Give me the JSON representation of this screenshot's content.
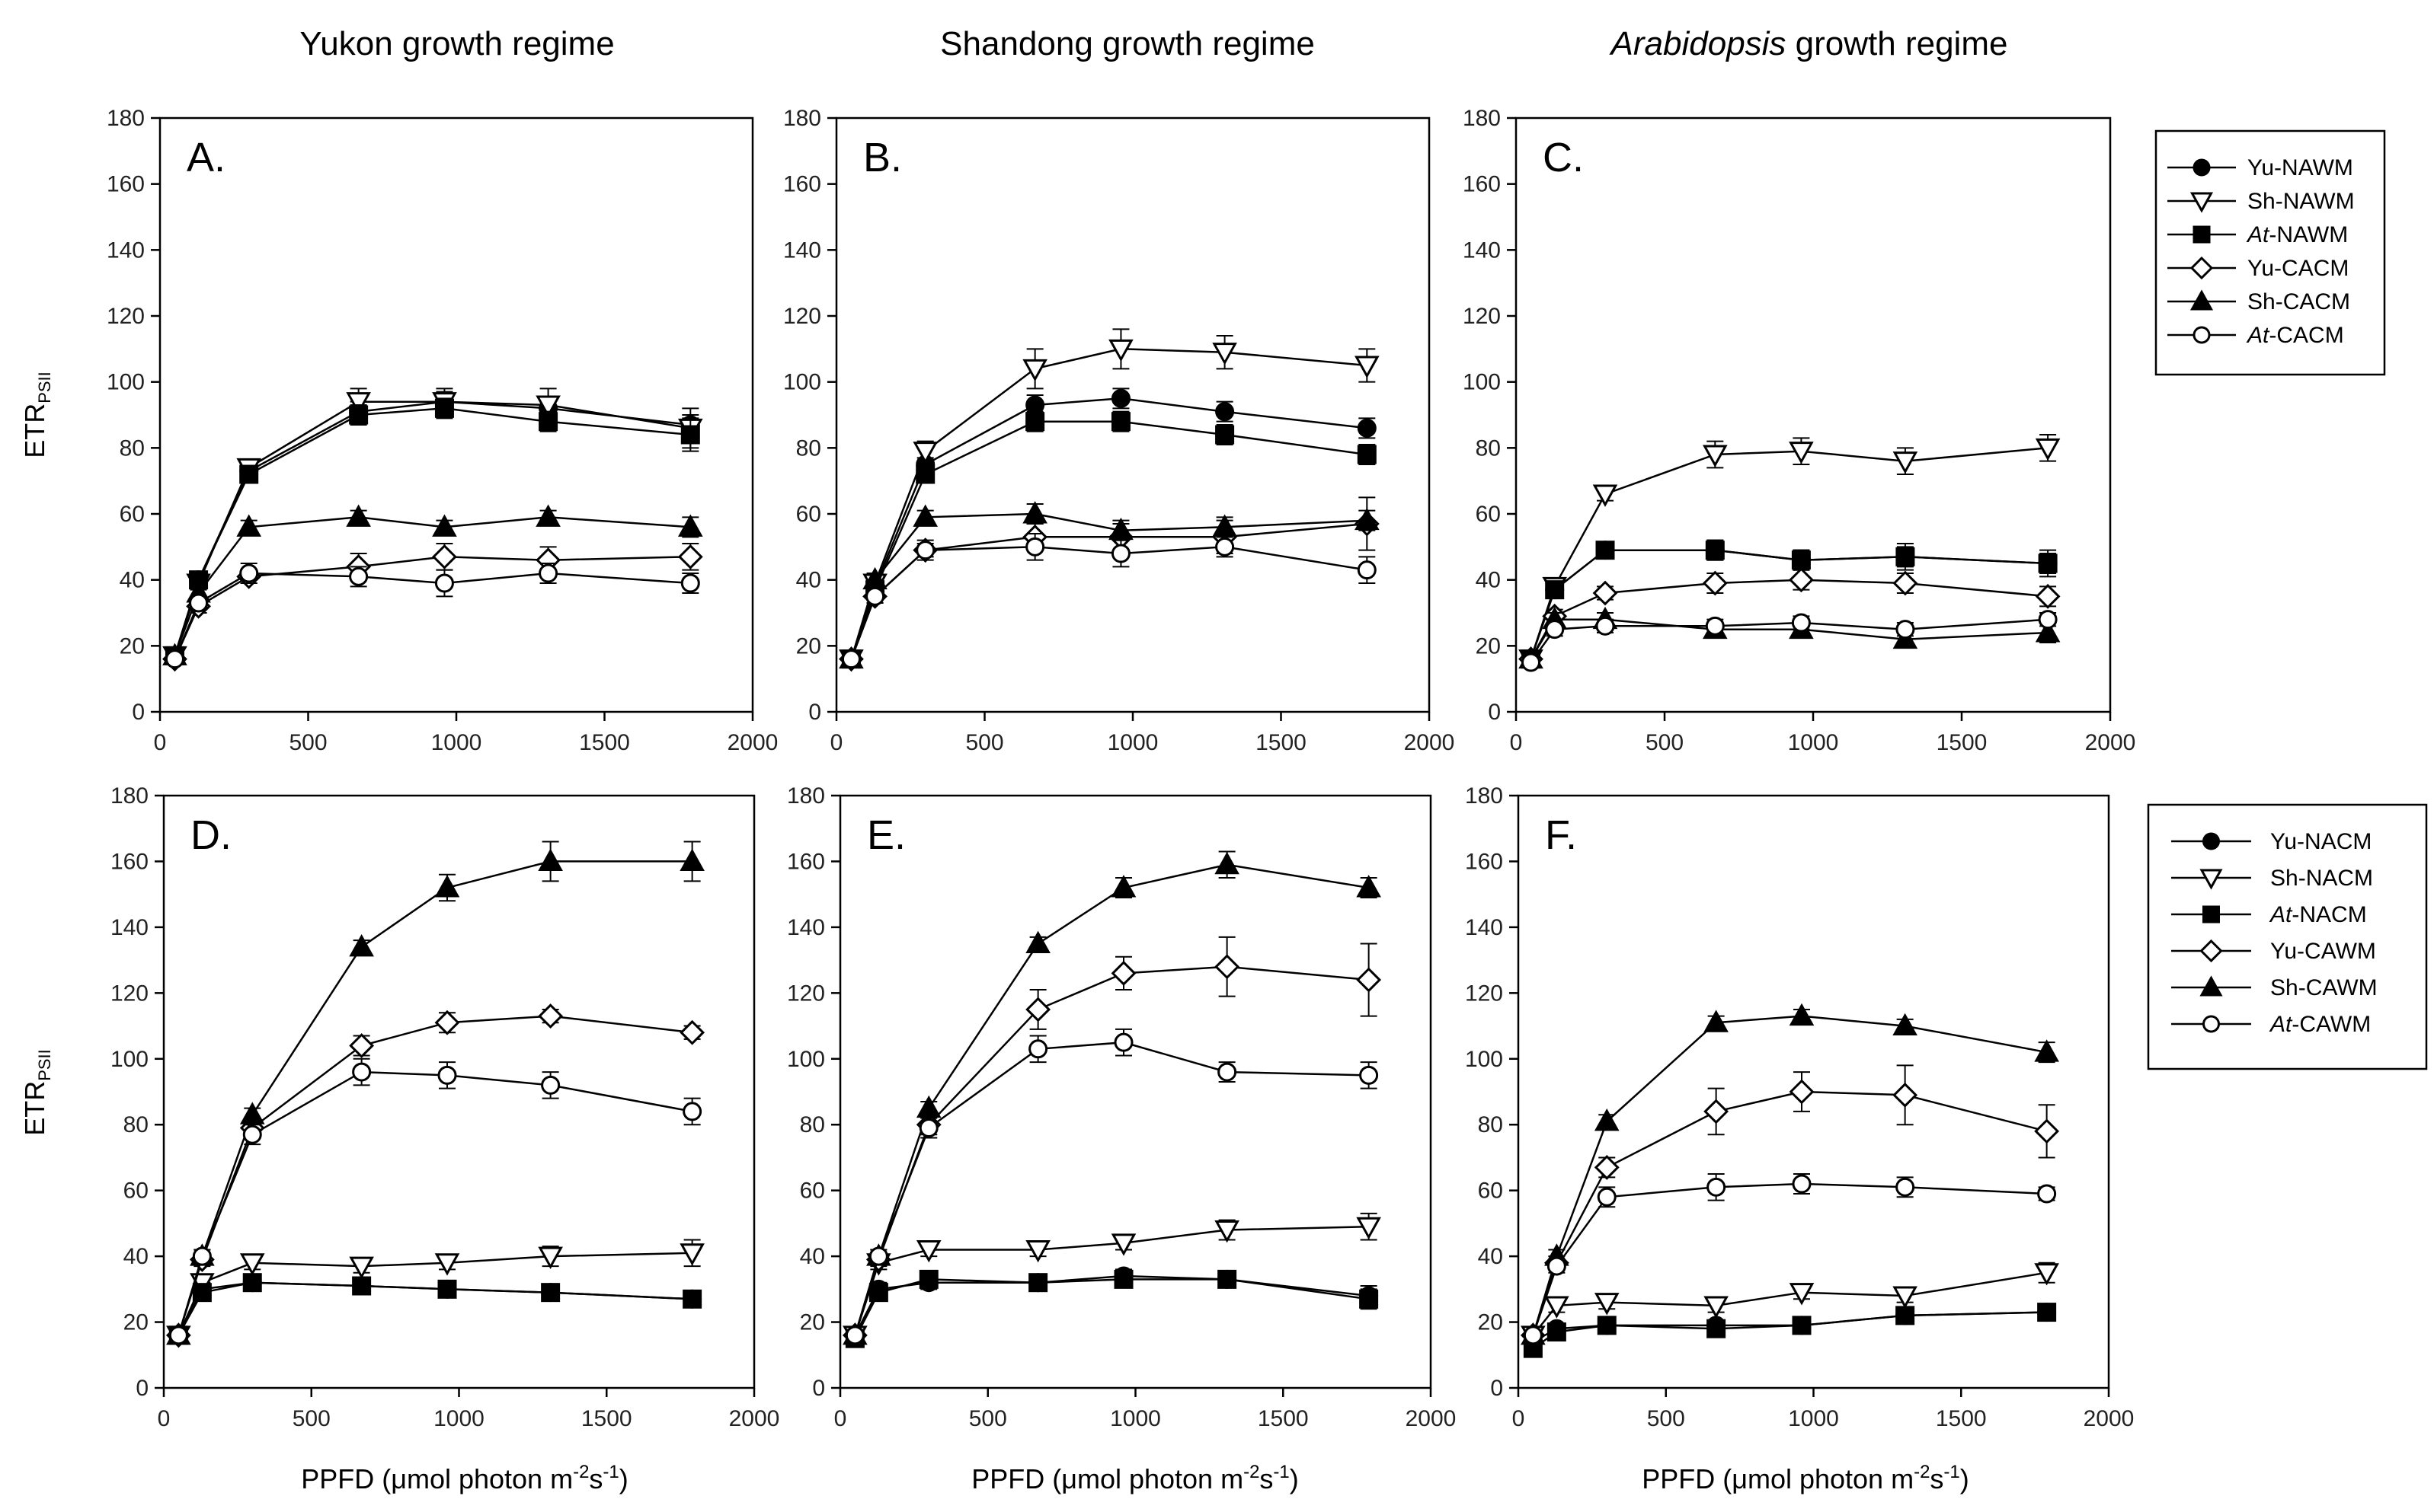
{
  "figure": {
    "column_titles": [
      {
        "pre": "",
        "em": "",
        "post": "Yukon growth regime"
      },
      {
        "pre": "",
        "em": "",
        "post": "Shandong growth regime"
      },
      {
        "pre": "",
        "em": "Arabidopsis",
        "post": " growth regime"
      }
    ],
    "ylabel_main": "ETR",
    "ylabel_sub": "PSII",
    "xlabel": {
      "pre": "PPFD (μmol photon m",
      "sup1": "-2",
      "mid": "s",
      "sup2": "-1",
      "post": ")"
    }
  },
  "legends": {
    "top": [
      {
        "prefix": "Yu",
        "prefix_italic": false,
        "suffix": "-NAWM",
        "marker": "circle",
        "fill": "black"
      },
      {
        "prefix": "Sh",
        "prefix_italic": false,
        "suffix": "-NAWM",
        "marker": "triangle-down",
        "fill": "white"
      },
      {
        "prefix": "At",
        "prefix_italic": true,
        "suffix": "-NAWM",
        "marker": "square",
        "fill": "black"
      },
      {
        "prefix": "Yu",
        "prefix_italic": false,
        "suffix": "-CACM",
        "marker": "diamond",
        "fill": "white"
      },
      {
        "prefix": "Sh",
        "prefix_italic": false,
        "suffix": "-CACM",
        "marker": "triangle-up",
        "fill": "black"
      },
      {
        "prefix": "At",
        "prefix_italic": true,
        "suffix": "-CACM",
        "marker": "circle",
        "fill": "white"
      }
    ],
    "bottom": [
      {
        "prefix": "Yu",
        "prefix_italic": false,
        "suffix": "-NACM",
        "marker": "circle",
        "fill": "black"
      },
      {
        "prefix": "Sh",
        "prefix_italic": false,
        "suffix": "-NACM",
        "marker": "triangle-down",
        "fill": "white"
      },
      {
        "prefix": "At",
        "prefix_italic": true,
        "suffix": "-NACM",
        "marker": "square",
        "fill": "black"
      },
      {
        "prefix": "Yu",
        "prefix_italic": false,
        "suffix": "-CAWM",
        "marker": "diamond",
        "fill": "white"
      },
      {
        "prefix": "Sh",
        "prefix_italic": false,
        "suffix": "-CAWM",
        "marker": "triangle-up",
        "fill": "black"
      },
      {
        "prefix": "At",
        "prefix_italic": true,
        "suffix": "-CAWM",
        "marker": "circle",
        "fill": "white"
      }
    ]
  },
  "chart_data": [
    {
      "type": "line",
      "panel": "A.",
      "xlim": [
        0,
        2000
      ],
      "ylim": [
        0,
        180
      ],
      "xticks": [
        0,
        500,
        1000,
        1500,
        2000
      ],
      "yticks": [
        0,
        20,
        40,
        60,
        80,
        100,
        120,
        140,
        160,
        180
      ],
      "x": [
        50,
        130,
        300,
        670,
        960,
        1310,
        1790
      ],
      "series": [
        {
          "name": "Yu-NAWM",
          "values": [
            17,
            40,
            73,
            91,
            94,
            92,
            87
          ],
          "errors": [
            1,
            2,
            2,
            3,
            3,
            3,
            3
          ]
        },
        {
          "name": "Sh-NAWM",
          "values": [
            17,
            39,
            74,
            94,
            94,
            93,
            86
          ],
          "errors": [
            1,
            2,
            2,
            4,
            4,
            5,
            6
          ]
        },
        {
          "name": "At-NAWM",
          "values": [
            17,
            40,
            72,
            90,
            92,
            88,
            84
          ],
          "errors": [
            1,
            2,
            2,
            3,
            3,
            3,
            5
          ]
        },
        {
          "name": "Yu-CACM",
          "values": [
            16,
            32,
            41,
            44,
            47,
            46,
            47
          ],
          "errors": [
            1,
            2,
            2,
            4,
            4,
            4,
            4
          ]
        },
        {
          "name": "Sh-CACM",
          "values": [
            17,
            36,
            56,
            59,
            56,
            59,
            56
          ],
          "errors": [
            1,
            2,
            2,
            2,
            2,
            2,
            3
          ]
        },
        {
          "name": "At-CACM",
          "values": [
            16,
            33,
            42,
            41,
            39,
            42,
            39
          ],
          "errors": [
            1,
            2,
            3,
            3,
            4,
            3,
            3
          ]
        }
      ]
    },
    {
      "type": "line",
      "panel": "B.",
      "xlim": [
        0,
        2000
      ],
      "ylim": [
        0,
        180
      ],
      "xticks": [
        0,
        500,
        1000,
        1500,
        2000
      ],
      "yticks": [
        0,
        20,
        40,
        60,
        80,
        100,
        120,
        140,
        160,
        180
      ],
      "x": [
        50,
        130,
        300,
        670,
        960,
        1310,
        1790
      ],
      "series": [
        {
          "name": "Yu-NAWM",
          "values": [
            16,
            38,
            75,
            93,
            95,
            91,
            86
          ],
          "errors": [
            1,
            2,
            2,
            3,
            3,
            3,
            3
          ]
        },
        {
          "name": "Sh-NAWM",
          "values": [
            16,
            39,
            79,
            104,
            110,
            109,
            105
          ],
          "errors": [
            1,
            2,
            3,
            6,
            6,
            5,
            5
          ]
        },
        {
          "name": "At-NAWM",
          "values": [
            16,
            37,
            72,
            88,
            88,
            84,
            78
          ],
          "errors": [
            1,
            2,
            2,
            3,
            3,
            3,
            3
          ]
        },
        {
          "name": "Yu-CACM",
          "values": [
            16,
            35,
            49,
            53,
            53,
            53,
            57
          ],
          "errors": [
            1,
            2,
            2,
            4,
            4,
            5,
            8
          ]
        },
        {
          "name": "Sh-CACM",
          "values": [
            16,
            40,
            59,
            60,
            55,
            56,
            58
          ],
          "errors": [
            1,
            2,
            2,
            3,
            3,
            3,
            3
          ]
        },
        {
          "name": "At-CACM",
          "values": [
            16,
            35,
            49,
            50,
            48,
            50,
            43
          ],
          "errors": [
            1,
            2,
            3,
            4,
            4,
            3,
            4
          ]
        }
      ]
    },
    {
      "type": "line",
      "panel": "C.",
      "xlim": [
        0,
        2000
      ],
      "ylim": [
        0,
        180
      ],
      "xticks": [
        0,
        500,
        1000,
        1500,
        2000
      ],
      "yticks": [
        0,
        20,
        40,
        60,
        80,
        100,
        120,
        140,
        160,
        180
      ],
      "x": [
        50,
        130,
        300,
        670,
        960,
        1310,
        1790
      ],
      "series": [
        {
          "name": "Yu-NAWM",
          "values": [
            16,
            37,
            49,
            49,
            46,
            47,
            45
          ],
          "errors": [
            1,
            2,
            2,
            3,
            3,
            3,
            3
          ]
        },
        {
          "name": "Sh-NAWM",
          "values": [
            16,
            38,
            66,
            78,
            79,
            76,
            80
          ],
          "errors": [
            1,
            2,
            2,
            4,
            4,
            4,
            4
          ]
        },
        {
          "name": "At-NAWM",
          "values": [
            16,
            37,
            49,
            49,
            46,
            47,
            45
          ],
          "errors": [
            1,
            2,
            2,
            3,
            3,
            4,
            4
          ]
        },
        {
          "name": "Yu-CACM",
          "values": [
            16,
            29,
            36,
            39,
            40,
            39,
            35
          ],
          "errors": [
            1,
            2,
            2,
            3,
            3,
            3,
            3
          ]
        },
        {
          "name": "Sh-CACM",
          "values": [
            16,
            28,
            28,
            25,
            25,
            22,
            24
          ],
          "errors": [
            1,
            2,
            2,
            2,
            2,
            2,
            3
          ]
        },
        {
          "name": "At-CACM",
          "values": [
            15,
            25,
            26,
            26,
            27,
            25,
            28
          ],
          "errors": [
            1,
            2,
            2,
            2,
            2,
            2,
            2
          ]
        }
      ]
    },
    {
      "type": "line",
      "panel": "D.",
      "xlim": [
        0,
        2000
      ],
      "ylim": [
        0,
        180
      ],
      "xticks": [
        0,
        500,
        1000,
        1500,
        2000
      ],
      "yticks": [
        0,
        20,
        40,
        60,
        80,
        100,
        120,
        140,
        160,
        180
      ],
      "x": [
        50,
        130,
        300,
        670,
        960,
        1310,
        1790
      ],
      "series": [
        {
          "name": "Yu-NACM",
          "values": [
            16,
            30,
            32,
            31,
            30,
            29,
            27
          ],
          "errors": [
            1,
            2,
            2,
            2,
            2,
            2,
            2
          ]
        },
        {
          "name": "Sh-NACM",
          "values": [
            16,
            32,
            38,
            37,
            38,
            40,
            41
          ],
          "errors": [
            1,
            2,
            2,
            2,
            2,
            3,
            4
          ]
        },
        {
          "name": "At-NACM",
          "values": [
            16,
            29,
            32,
            31,
            30,
            29,
            27
          ],
          "errors": [
            1,
            2,
            2,
            2,
            2,
            2,
            2
          ]
        },
        {
          "name": "Yu-CAWM",
          "values": [
            16,
            39,
            79,
            104,
            111,
            113,
            108
          ],
          "errors": [
            1,
            2,
            2,
            3,
            3,
            2,
            2
          ]
        },
        {
          "name": "Sh-CAWM",
          "values": [
            16,
            40,
            83,
            134,
            152,
            160,
            160
          ],
          "errors": [
            1,
            2,
            2,
            2,
            4,
            6,
            6
          ]
        },
        {
          "name": "At-CAWM",
          "values": [
            16,
            40,
            77,
            96,
            95,
            92,
            84
          ],
          "errors": [
            1,
            2,
            3,
            4,
            4,
            4,
            4
          ]
        }
      ]
    },
    {
      "type": "line",
      "panel": "E.",
      "xlim": [
        0,
        2000
      ],
      "ylim": [
        0,
        180
      ],
      "xticks": [
        0,
        500,
        1000,
        1500,
        2000
      ],
      "yticks": [
        0,
        20,
        40,
        60,
        80,
        100,
        120,
        140,
        160,
        180
      ],
      "x": [
        50,
        130,
        300,
        670,
        960,
        1310,
        1790
      ],
      "series": [
        {
          "name": "Yu-NACM",
          "values": [
            16,
            30,
            32,
            32,
            34,
            33,
            28
          ],
          "errors": [
            1,
            2,
            2,
            2,
            2,
            2,
            3
          ]
        },
        {
          "name": "Sh-NACM",
          "values": [
            16,
            38,
            42,
            42,
            44,
            48,
            49
          ],
          "errors": [
            1,
            2,
            2,
            2,
            2,
            3,
            4
          ]
        },
        {
          "name": "At-NACM",
          "values": [
            15,
            29,
            33,
            32,
            33,
            33,
            27
          ],
          "errors": [
            1,
            2,
            2,
            2,
            2,
            2,
            3
          ]
        },
        {
          "name": "Yu-CAWM",
          "values": [
            16,
            39,
            80,
            115,
            126,
            128,
            124
          ],
          "errors": [
            1,
            2,
            3,
            6,
            5,
            9,
            11
          ]
        },
        {
          "name": "Sh-CAWM",
          "values": [
            16,
            40,
            85,
            135,
            152,
            159,
            152
          ],
          "errors": [
            1,
            2,
            2,
            2,
            3,
            4,
            3
          ]
        },
        {
          "name": "At-CAWM",
          "values": [
            16,
            40,
            79,
            103,
            105,
            96,
            95
          ],
          "errors": [
            1,
            2,
            3,
            4,
            4,
            3,
            4
          ]
        }
      ]
    },
    {
      "type": "line",
      "panel": "F.",
      "xlim": [
        0,
        2000
      ],
      "ylim": [
        0,
        180
      ],
      "xticks": [
        0,
        500,
        1000,
        1500,
        2000
      ],
      "yticks": [
        0,
        20,
        40,
        60,
        80,
        100,
        120,
        140,
        160,
        180
      ],
      "x": [
        50,
        130,
        300,
        670,
        960,
        1310,
        1790
      ],
      "series": [
        {
          "name": "Yu-NACM",
          "values": [
            14,
            18,
            19,
            19,
            19,
            22,
            23
          ],
          "errors": [
            1,
            1,
            1,
            1,
            1,
            1,
            1
          ]
        },
        {
          "name": "Sh-NACM",
          "values": [
            16,
            25,
            26,
            25,
            29,
            28,
            35
          ],
          "errors": [
            1,
            2,
            2,
            2,
            2,
            2,
            3
          ]
        },
        {
          "name": "At-NACM",
          "values": [
            12,
            17,
            19,
            18,
            19,
            22,
            23
          ],
          "errors": [
            1,
            1,
            1,
            1,
            1,
            1,
            2
          ]
        },
        {
          "name": "Yu-CAWM",
          "values": [
            16,
            38,
            67,
            84,
            90,
            89,
            78
          ],
          "errors": [
            1,
            2,
            3,
            7,
            6,
            9,
            8
          ]
        },
        {
          "name": "Sh-CAWM",
          "values": [
            16,
            40,
            81,
            111,
            113,
            110,
            102
          ],
          "errors": [
            1,
            2,
            2,
            2,
            2,
            2,
            3
          ]
        },
        {
          "name": "At-CAWM",
          "values": [
            16,
            37,
            58,
            61,
            62,
            61,
            59
          ],
          "errors": [
            1,
            2,
            3,
            4,
            3,
            3,
            2
          ]
        }
      ]
    }
  ]
}
